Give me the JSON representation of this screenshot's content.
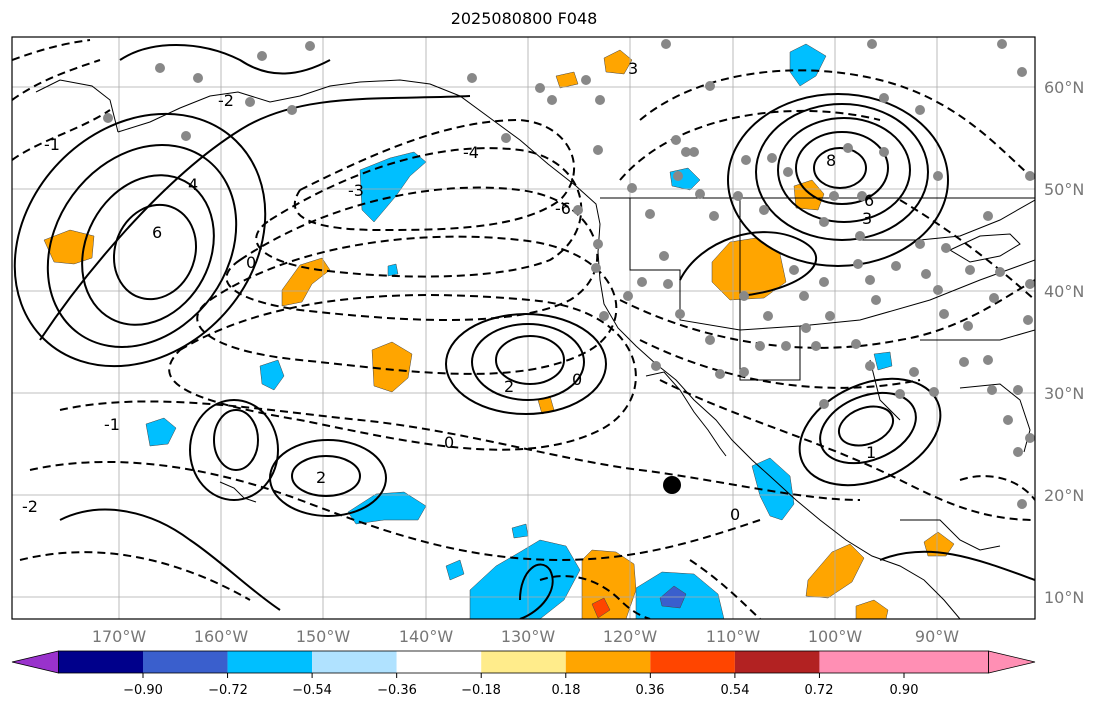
{
  "title": "2025080800 F048",
  "lat_labels": [
    "60°N",
    "50°N",
    "40°N",
    "30°N",
    "20°N",
    "10°N"
  ],
  "lon_labels": [
    "170°W",
    "160°W",
    "150°W",
    "140°W",
    "130°W",
    "120°W",
    "110°W",
    "100°W",
    "90°W"
  ],
  "contour_labels": [
    "-6",
    "-4",
    "-3",
    "-2",
    "-2",
    "-1",
    "-1",
    "0",
    "0",
    "0",
    "0",
    "1",
    "2",
    "2",
    "3",
    "3",
    "4",
    "6",
    "6",
    "8"
  ],
  "colorbar": {
    "ticks": [
      "−0.90",
      "−0.72",
      "−0.54",
      "−0.36",
      "−0.18",
      "0.18",
      "0.36",
      "0.54",
      "0.72",
      "0.90"
    ],
    "colors": [
      "#9932cc",
      "#00008b",
      "#3a5fcd",
      "#00bfff",
      "#b0e2ff",
      "#ffffff",
      "#ffec8b",
      "#ffa500",
      "#ff4500",
      "#b22222",
      "#ff8fb4"
    ]
  }
}
